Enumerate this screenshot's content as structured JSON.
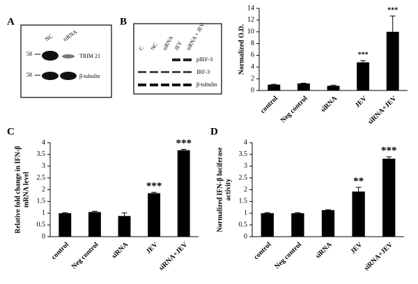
{
  "blots": {
    "A": {
      "label": "A",
      "lanes": [
        "NC",
        "siRNA"
      ],
      "markers": [
        "58",
        "58"
      ],
      "rows": [
        "TRIM 21",
        "β-tubulin"
      ]
    },
    "B": {
      "label": "B",
      "lanes": [
        "C",
        "NC",
        "siRNA",
        "JEV",
        "siRNA + JEV"
      ],
      "rows": [
        "pIRF-3",
        "IRF-3",
        "β-tubulin"
      ]
    }
  },
  "chart_data": [
    {
      "type": "bar",
      "ylabel": [
        "Normalized O.D."
      ],
      "categories": [
        "control",
        "Neg control",
        "siRNA",
        "JEV",
        "siRNA+JEV"
      ],
      "values": [
        1,
        1.2,
        0.8,
        4.8,
        10.0
      ],
      "errors": [
        0.05,
        0.05,
        0.1,
        0.3,
        2.7
      ],
      "color": "#000000",
      "annotations": [
        {
          "category": "JEV",
          "text": "***"
        },
        {
          "category": "siRNA+JEV",
          "text": "***"
        }
      ],
      "ylim": [
        0,
        14
      ],
      "yticks": [
        0,
        2,
        4,
        6,
        8,
        10,
        12,
        14
      ]
    },
    {
      "type": "bar",
      "panel": "C",
      "ylabel": [
        "Relative fold change in IFN-β",
        "mRNA level"
      ],
      "categories": [
        "control",
        "Neg control",
        "siRNA",
        "JEV",
        "siRNA+JEV"
      ],
      "values": [
        1,
        1.05,
        0.88,
        1.85,
        3.68
      ],
      "errors": [
        0.02,
        0.03,
        0.13,
        0.04,
        0.04
      ],
      "color": "#000000",
      "annotations": [
        {
          "category": "JEV",
          "text": "***"
        },
        {
          "category": "siRNA+JEV",
          "text": "***"
        }
      ],
      "ylim": [
        0,
        4
      ],
      "yticks": [
        0,
        0.5,
        1,
        1.5,
        2,
        2.5,
        3,
        3.5,
        4
      ]
    },
    {
      "type": "bar",
      "panel": "D",
      "ylabel": [
        "Normalized IFN-β luciferase",
        "activity"
      ],
      "categories": [
        "control",
        "Neg control",
        "siRNA",
        "JEV",
        "siRNA+JEV"
      ],
      "values": [
        1,
        1,
        1.13,
        1.92,
        3.32
      ],
      "errors": [
        0.02,
        0.02,
        0.02,
        0.18,
        0.08
      ],
      "color": "#000000",
      "annotations": [
        {
          "category": "JEV",
          "text": "**"
        },
        {
          "category": "siRNA+JEV",
          "text": "***"
        }
      ],
      "ylim": [
        0,
        4
      ],
      "yticks": [
        0,
        0.5,
        1,
        1.5,
        2,
        2.5,
        3,
        3.5,
        4
      ]
    }
  ]
}
